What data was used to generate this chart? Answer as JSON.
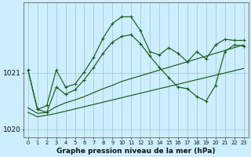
{
  "background_color": "#cceeff",
  "grid_color": "#aacccc",
  "line_color": "#1a5c1a",
  "title": "Graphe pression niveau de la mer (hPa)",
  "ylabel_ticks": [
    1020,
    1021
  ],
  "x_labels": [
    "0",
    "1",
    "2",
    "3",
    "4",
    "5",
    "6",
    "7",
    "8",
    "9",
    "10",
    "11",
    "12",
    "13",
    "14",
    "15",
    "16",
    "17",
    "18",
    "19",
    "20",
    "21",
    "22",
    "23"
  ],
  "series1": [
    1021.05,
    1020.35,
    1020.3,
    1020.75,
    1020.62,
    1020.7,
    1020.88,
    1021.1,
    1021.35,
    1021.55,
    1021.65,
    1021.68,
    1021.52,
    1021.3,
    1021.1,
    1020.92,
    1020.75,
    1020.72,
    1020.58,
    1020.5,
    1020.78,
    1021.38,
    1021.5,
    1021.48
  ],
  "series2": [
    1021.05,
    1020.35,
    1020.42,
    1021.05,
    1020.75,
    1020.8,
    1021.02,
    1021.28,
    1021.62,
    1021.88,
    1022.0,
    1022.0,
    1021.75,
    1021.38,
    1021.32,
    1021.45,
    1021.35,
    1021.2,
    1021.38,
    1021.25,
    1021.5,
    1021.6,
    1021.58,
    1021.58
  ],
  "series3": [
    1020.38,
    1020.28,
    1020.3,
    1020.4,
    1020.47,
    1020.52,
    1020.58,
    1020.65,
    1020.72,
    1020.78,
    1020.85,
    1020.9,
    1020.95,
    1021.0,
    1021.05,
    1021.1,
    1021.15,
    1021.2,
    1021.25,
    1021.3,
    1021.35,
    1021.4,
    1021.45,
    1021.5
  ],
  "series4": [
    1020.3,
    1020.22,
    1020.25,
    1020.28,
    1020.32,
    1020.36,
    1020.4,
    1020.44,
    1020.48,
    1020.52,
    1020.56,
    1020.6,
    1020.64,
    1020.68,
    1020.72,
    1020.76,
    1020.8,
    1020.84,
    1020.88,
    1020.92,
    1020.96,
    1021.0,
    1021.04,
    1021.08
  ],
  "ylim": [
    1019.85,
    1022.25
  ],
  "figsize": [
    3.2,
    2.0
  ],
  "dpi": 100
}
